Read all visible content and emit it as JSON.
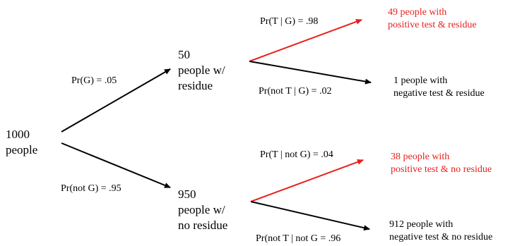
{
  "colors": {
    "default": "#000000",
    "highlight": "#e8201c"
  },
  "root": {
    "line1": "1000",
    "line2": "people"
  },
  "branch_residue": {
    "prob": "Pr(G) = .05",
    "node": {
      "line1": "50",
      "line2": "people w/",
      "line3": "residue"
    },
    "positive": {
      "prob": "Pr(T | G) = .98",
      "leaf_line1": "49 people with",
      "leaf_line2": "positive test & residue",
      "highlight": true
    },
    "negative": {
      "prob": "Pr(not T | G) = .02",
      "leaf_line1": "1 people with",
      "leaf_line2": "negative test & residue",
      "highlight": false
    }
  },
  "branch_no_residue": {
    "prob": "Pr(not G) = .95",
    "node": {
      "line1": "950",
      "line2": "people w/",
      "line3": "no residue"
    },
    "positive": {
      "prob": "Pr(T | not G) = .04",
      "leaf_line1": "38 people with",
      "leaf_line2": "positive test & no residue",
      "highlight": true
    },
    "negative": {
      "prob": "Pr(not T | not G = .96",
      "leaf_line1": "912 people with",
      "leaf_line2": "negative test & no residue",
      "highlight": false
    }
  }
}
